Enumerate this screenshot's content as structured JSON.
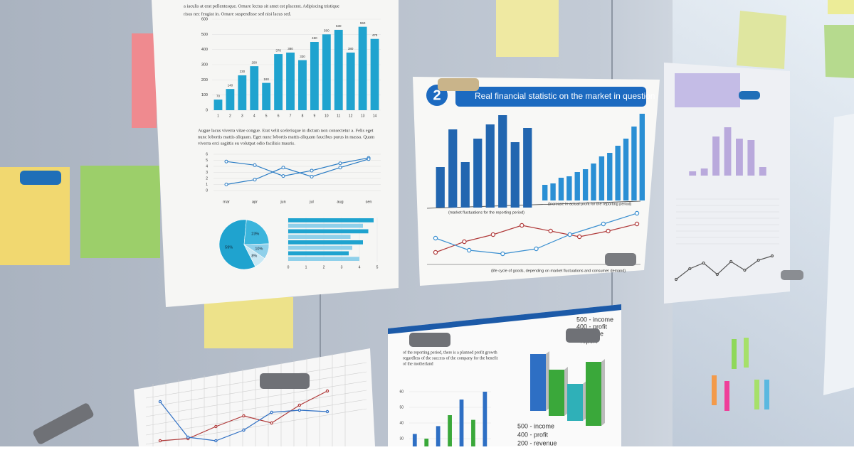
{
  "top_left_sheet": {
    "text_lines": [
      "a iaculis at erat pellentesque. Ornare lectus sit amet est placerat. Adipiscing tristique",
      "risus nec feugiat in. Ornare suspendisse sed nisi lacus sed."
    ],
    "bar_chart": {
      "type": "bar",
      "categories": [
        "1",
        "2",
        "3",
        "4",
        "5",
        "6",
        "7",
        "8",
        "9",
        "10",
        "11",
        "12",
        "13",
        "14"
      ],
      "values": [
        70,
        140,
        230,
        290,
        180,
        370,
        380,
        330,
        450,
        500,
        530,
        380,
        550,
        470
      ],
      "color": "#1fa3cf",
      "ylim": [
        0,
        600
      ],
      "yticks": [
        0,
        100,
        200,
        300,
        400,
        500,
        600
      ]
    },
    "paragraph_lines": [
      "Augue lacus viverra vitae congue. Erat velit scelerisque in dictum non consectetur a. Felis eget",
      "nunc lobortis mattis aliquam. Eget nunc lobortis mattis aliquam faucibus purus in massa. Quam",
      "viverra orci sagittis eu volutpat odio facilisis mauris."
    ],
    "line_chart": {
      "type": "line",
      "categories": [
        "mar",
        "apr",
        "jun",
        "jul",
        "aug",
        "sen"
      ],
      "ylim": [
        0,
        6
      ],
      "yticks": [
        0,
        1,
        2,
        3,
        4,
        5,
        6
      ],
      "series": [
        {
          "color": "#2a7cc4",
          "values": [
            4.8,
            4.2,
            2.4,
            3.3,
            4.5,
            5.4
          ]
        },
        {
          "color": "#2a7cc4",
          "values": [
            1,
            1.8,
            3.8,
            2.3,
            3.8,
            5.2
          ]
        }
      ]
    },
    "pie": {
      "type": "pie",
      "values": [
        59,
        23,
        10,
        8
      ],
      "value_labels": [
        "59%",
        "23%",
        "10%",
        "8%"
      ],
      "colors": [
        "#1fa3cf",
        "#3bb5dc",
        "#8fd0ea",
        "#c9e8f4"
      ]
    },
    "hbar": {
      "type": "bar",
      "xlim": [
        0,
        5
      ],
      "xticks": [
        0,
        1,
        2,
        3,
        4,
        5
      ],
      "values": [
        4.8,
        4.2,
        4.5,
        3.5,
        4.2,
        3.6,
        3.4,
        4.0
      ],
      "colors": [
        "#1fa3cf",
        "#8fd0ea"
      ]
    }
  },
  "middle_sheet": {
    "number": "2",
    "title": "Real financial statistic on the market in question",
    "bars_left": {
      "type": "bar",
      "values": [
        57,
        110,
        64,
        97,
        117,
        130,
        92,
        112
      ],
      "color": "#2266b0"
    },
    "bars_right": {
      "type": "bar",
      "values": [
        22,
        24,
        32,
        34,
        40,
        44,
        52,
        62,
        67,
        77,
        87,
        104,
        122
      ],
      "color": "#2a8fd4"
    },
    "caption_left": "(market fluctuations for the reporting period)",
    "caption_right": "(increase in actual profit for the reporting period)",
    "line_chart": {
      "type": "line",
      "series": [
        {
          "color": "#b03a3a",
          "values": [
            15,
            30,
            40,
            53,
            45,
            37,
            45,
            55
          ]
        },
        {
          "color": "#3a8fd0",
          "values": [
            35,
            18,
            13,
            20,
            40,
            55,
            70
          ]
        }
      ]
    },
    "caption_bottom": "(life cycle of goods, depending on market fluctuations and consumer demand)"
  },
  "right_sheet": {
    "bars": {
      "type": "bar",
      "values": [
        6,
        10,
        55,
        68,
        52,
        50,
        12
      ],
      "color": "#b9a9dc"
    },
    "line_chart": {
      "type": "line",
      "series": [
        {
          "color": "#555555",
          "values": [
            5,
            20,
            28,
            12,
            30,
            18,
            32,
            38
          ]
        }
      ]
    }
  },
  "bottom_middle_sheet": {
    "text_lines": [
      "of the reporting period, there is a planned profit growth",
      "regardless of the success of the company for the benefit",
      "of the motherland"
    ],
    "legend_top": [
      "500 - income",
      "400 - profit",
      "- revenue",
      "- report"
    ],
    "bars_3d": {
      "type": "bar",
      "values": [
        80,
        65,
        52,
        90
      ],
      "colors": [
        "#2e6fc4",
        "#3aa83a",
        "#2fb0b8",
        "#3aa83a"
      ]
    },
    "legend_bottom": [
      "500 - income",
      "400 - profit",
      "200 - revenue"
    ],
    "small_chart": {
      "type": "bar",
      "ylim": [
        25,
        65
      ],
      "yticks": [
        30,
        40,
        50,
        60
      ],
      "values": [
        33,
        30,
        38,
        45,
        55,
        42,
        60
      ],
      "color": "#2e6fc4"
    }
  },
  "bottom_left_sheet": {
    "line_chart": {
      "type": "line",
      "series": [
        {
          "color": "#b03a3a",
          "values": [
            5,
            8,
            25,
            40,
            30,
            55,
            75
          ]
        },
        {
          "color": "#2e6fc4",
          "values": [
            60,
            10,
            5,
            20,
            45,
            48,
            46
          ]
        }
      ]
    }
  }
}
